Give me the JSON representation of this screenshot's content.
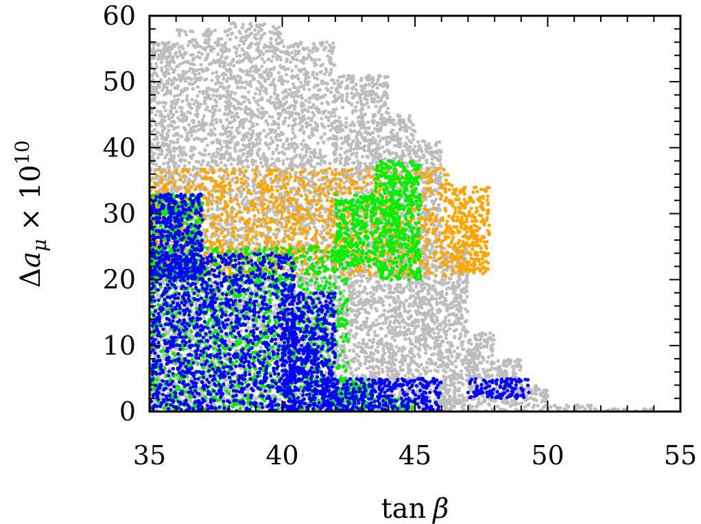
{
  "chart_data": {
    "type": "scatter",
    "xlabel": "tan β",
    "ylabel": "Δa_μ × 10^10",
    "xlabel_parts": {
      "func": "tan",
      "var": "β"
    },
    "ylabel_parts": {
      "delta": "Δ",
      "a": "a",
      "sub": "μ",
      "times": "×",
      "ten": "10",
      "exp": "10"
    },
    "xlim": [
      35,
      55
    ],
    "ylim": [
      0,
      60
    ],
    "xticks": [
      "35",
      "40",
      "45",
      "50",
      "55"
    ],
    "xtick_values": [
      35,
      40,
      45,
      50,
      55
    ],
    "yticks": [
      "0",
      "10",
      "20",
      "30",
      "40",
      "50",
      "60"
    ],
    "ytick_values": [
      0,
      10,
      20,
      30,
      40,
      50,
      60
    ],
    "grid": false,
    "legend": "none",
    "series": [
      {
        "color": "#bdbdbd",
        "regions": [
          {
            "x": [
              35,
              36
            ],
            "y": [
              0,
              56
            ]
          },
          {
            "x": [
              36,
              38
            ],
            "y": [
              0,
              58
            ]
          },
          {
            "x": [
              38,
              40
            ],
            "y": [
              0,
              59
            ]
          },
          {
            "x": [
              40,
              42
            ],
            "y": [
              0,
              56
            ]
          },
          {
            "x": [
              42,
              44
            ],
            "y": [
              0,
              51
            ]
          },
          {
            "x": [
              44,
              45
            ],
            "y": [
              0,
              45
            ]
          },
          {
            "x": [
              45,
              46
            ],
            "y": [
              0,
              41
            ]
          },
          {
            "x": [
              46,
              47
            ],
            "y": [
              0,
              25
            ]
          },
          {
            "x": [
              47,
              48
            ],
            "y": [
              0,
              12
            ]
          },
          {
            "x": [
              48,
              49
            ],
            "y": [
              0,
              8
            ]
          },
          {
            "x": [
              49,
              50
            ],
            "y": [
              0,
              4
            ]
          },
          {
            "x": [
              50,
              52
            ],
            "y": [
              0,
              1
            ]
          },
          {
            "x": [
              52,
              54
            ],
            "y": [
              0,
              0.5
            ]
          }
        ]
      },
      {
        "color": "#ffa500",
        "regions": [
          {
            "x": [
              35,
              46.4
            ],
            "y": [
              20.5,
              36.9
            ]
          },
          {
            "x": [
              46.4,
              47.8
            ],
            "y": [
              20.8,
              34
            ]
          }
        ]
      },
      {
        "color": "#00ee00",
        "regions": [
          {
            "x": [
              35,
              42.5
            ],
            "y": [
              0,
              25
            ]
          },
          {
            "x": [
              35,
              37
            ],
            "y": [
              20,
              33
            ]
          },
          {
            "x": [
              42,
              43.5
            ],
            "y": [
              0,
              5
            ]
          },
          {
            "x": [
              43.5,
              45.2
            ],
            "y": [
              20,
              38
            ]
          },
          {
            "x": [
              42,
              43.5
            ],
            "y": [
              22,
              33
            ]
          },
          {
            "x": [
              43.8,
              45
            ],
            "y": [
              0,
              2
            ]
          }
        ]
      },
      {
        "color": "#0000ff",
        "regions": [
          {
            "x": [
              35,
              40.5
            ],
            "y": [
              0,
              24
            ]
          },
          {
            "x": [
              35,
              37
            ],
            "y": [
              20,
              33
            ]
          },
          {
            "x": [
              40,
              42
            ],
            "y": [
              0,
              18
            ]
          },
          {
            "x": [
              41.5,
              46
            ],
            "y": [
              0,
              5
            ]
          },
          {
            "x": [
              47,
              49.3
            ],
            "y": [
              2,
              5
            ]
          }
        ]
      }
    ]
  }
}
